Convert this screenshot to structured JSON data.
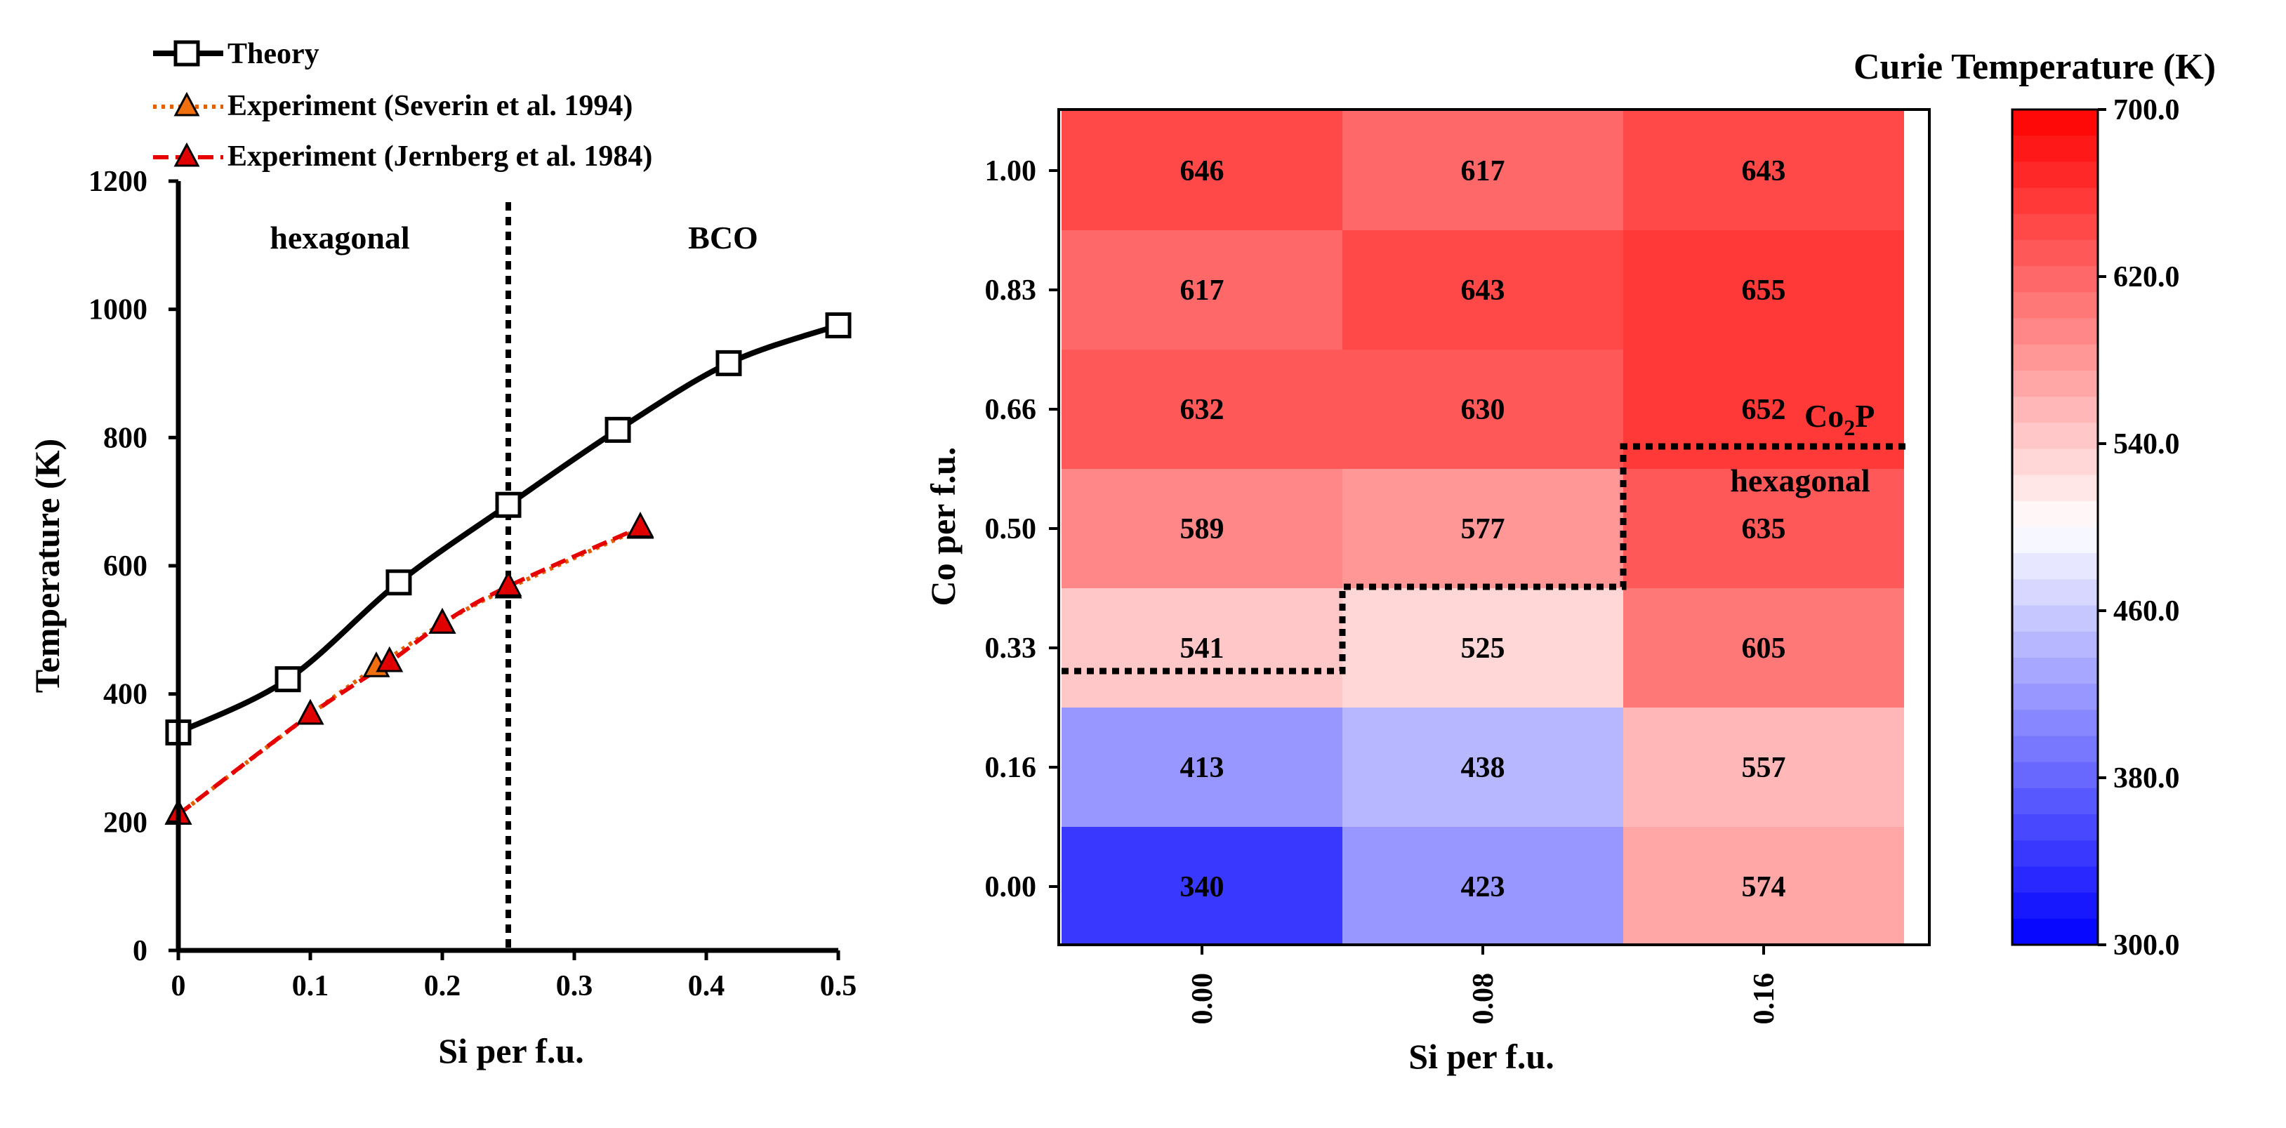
{
  "chart_data": [
    {
      "type": "line",
      "xlabel": "Si per f.u.",
      "ylabel": "Temperature (K)",
      "xlim": [
        0,
        0.5
      ],
      "ylim": [
        0,
        1200
      ],
      "xticks": [
        0,
        0.1,
        0.2,
        0.3,
        0.4,
        0.5
      ],
      "xtick_labels": [
        "0",
        "0.1",
        "0.2",
        "0.3",
        "0.4",
        "0.5"
      ],
      "yticks": [
        0,
        200,
        400,
        600,
        800,
        1000,
        1200
      ],
      "ytick_labels": [
        "0",
        "200",
        "400",
        "600",
        "800",
        "1000",
        "1200"
      ],
      "grid": false,
      "legend_position": "top-left",
      "series": [
        {
          "name": "Theory",
          "marker": "square",
          "color": "#000000",
          "line": "solid",
          "x": [
            0,
            0.083,
            0.167,
            0.25,
            0.333,
            0.417,
            0.5
          ],
          "y": [
            340,
            423,
            574,
            695,
            812,
            916,
            975
          ]
        },
        {
          "name": "Experiment (Severin et al. 1994)",
          "marker": "triangle",
          "color": "#e06000",
          "line": "dotted",
          "x": [
            0,
            0.1,
            0.15,
            0.2,
            0.25,
            0.35
          ],
          "y": [
            212,
            368,
            442,
            510,
            565,
            658
          ]
        },
        {
          "name": "Experiment (Jernberg et al. 1984)",
          "marker": "triangle",
          "color": "#e60000",
          "line": "dashed",
          "x": [
            0,
            0.1,
            0.16,
            0.2,
            0.25,
            0.35
          ],
          "y": [
            212,
            368,
            450,
            510,
            568,
            660
          ]
        }
      ],
      "vline": {
        "x": 0.25,
        "style": "dotted"
      },
      "annotations": [
        "hexagonal",
        "BCO"
      ]
    },
    {
      "type": "heatmap",
      "xlabel": "Si per f.u.",
      "ylabel": "Co per f.u.",
      "x_categories": [
        "0.00",
        "0.08",
        "0.16"
      ],
      "y_categories": [
        "1.00",
        "0.83",
        "0.66",
        "0.50",
        "0.33",
        "0.16",
        "0.00"
      ],
      "values": [
        [
          646,
          617,
          643
        ],
        [
          617,
          643,
          655
        ],
        [
          632,
          630,
          652
        ],
        [
          589,
          577,
          635
        ],
        [
          541,
          525,
          605
        ],
        [
          413,
          438,
          557
        ],
        [
          340,
          423,
          574
        ]
      ],
      "colorbar": {
        "title": "Curie Temperature (K)",
        "min": 300,
        "max": 700,
        "ticks": [
          700,
          620,
          540,
          460,
          380,
          300
        ],
        "tick_labels": [
          "700.0",
          "620.0",
          "540.0",
          "460.0",
          "380.0",
          "300.0"
        ],
        "levels": 32
      },
      "annotations": {
        "co2p_main": "Co",
        "co2p_sub": "2",
        "co2p_tail": "P",
        "hexagonal": "hexagonal"
      }
    }
  ]
}
